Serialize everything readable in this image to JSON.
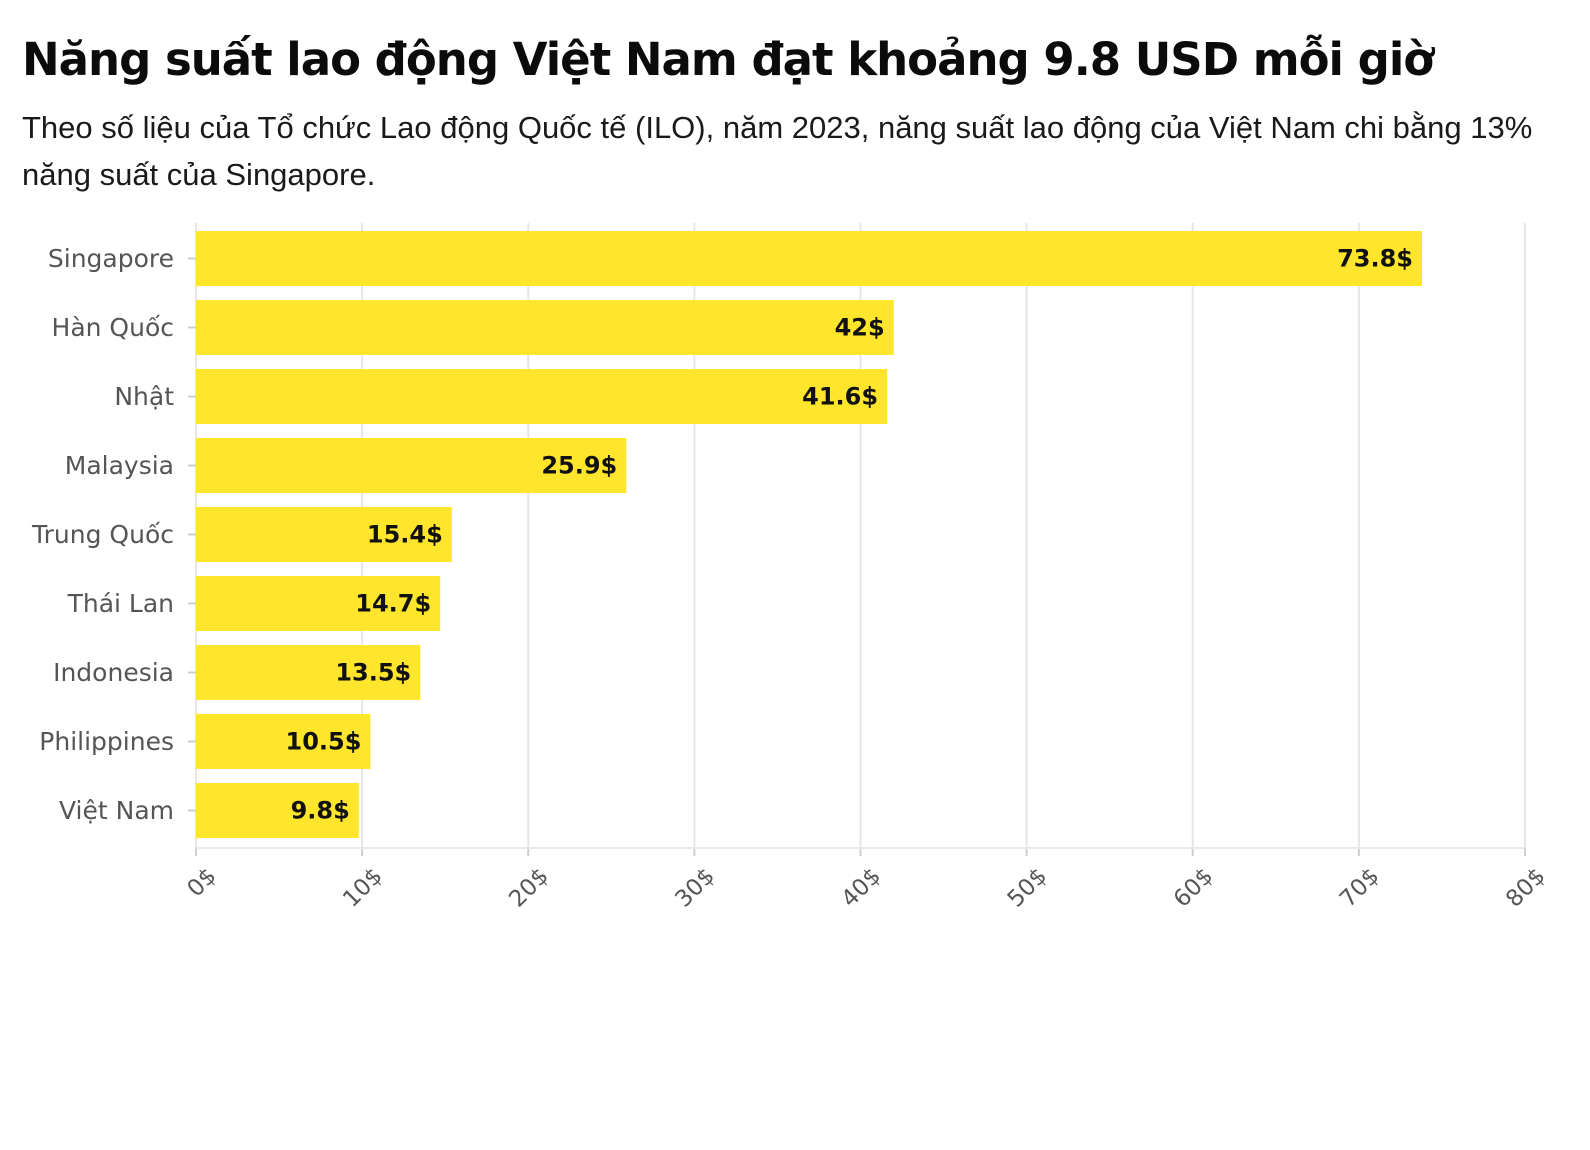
{
  "header": {
    "title": "Năng suất lao động Việt Nam đạt khoảng 9.8 USD mỗi giờ",
    "subtitle": "Theo số liệu của Tổ chức Lao động Quốc tế (ILO), năm 2023, năng suất lao động của Việt Nam chi bằng 13% năng suất của Singapore."
  },
  "colors": {
    "bar": "#FFE52B",
    "grid": "#E6E6E6",
    "label_bg": "#FFE52B"
  },
  "chart_data": {
    "type": "bar",
    "orientation": "horizontal",
    "title": "Năng suất lao động Việt Nam đạt khoảng 9.8 USD mỗi giờ",
    "categories": [
      "Singapore",
      "Hàn Quốc",
      "Nhật",
      "Malaysia",
      "Trung Quốc",
      "Thái Lan",
      "Indonesia",
      "Philippines",
      "Việt Nam"
    ],
    "values": [
      73.8,
      42,
      41.6,
      25.9,
      15.4,
      14.7,
      13.5,
      10.5,
      9.8
    ],
    "data_labels": [
      "73.8$",
      "42$",
      "41.6$",
      "25.9$",
      "15.4$",
      "14.7$",
      "13.5$",
      "10.5$",
      "9.8$"
    ],
    "xlim": [
      0,
      80
    ],
    "xticks": [
      0,
      10,
      20,
      30,
      40,
      50,
      60,
      70,
      80
    ],
    "xtick_labels": [
      "0$",
      "10$",
      "20$",
      "30$",
      "40$",
      "50$",
      "60$",
      "70$",
      "80$"
    ],
    "xlabel": "",
    "ylabel": "",
    "grid": true
  }
}
